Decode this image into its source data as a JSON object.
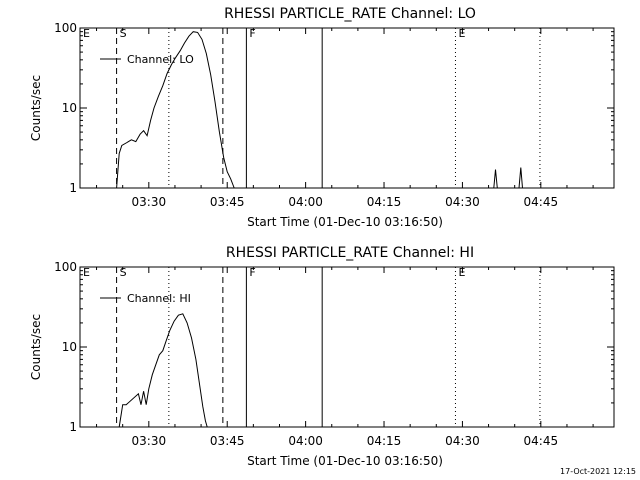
{
  "footer": {
    "timestamp": "17-Oct-2021 12:15"
  },
  "chart_data": [
    {
      "type": "line",
      "title": "RHESSI PARTICLE_RATE Channel: LO",
      "xlabel": "Start Time (01-Dec-10 03:16:50)",
      "ylabel": "Counts/sec",
      "xlim": [
        "03:16:50",
        "04:59:00"
      ],
      "ylim": [
        1,
        100
      ],
      "yscale": "log",
      "xticks": [
        "03:30",
        "03:45",
        "04:00",
        "04:15",
        "04:30",
        "04:45"
      ],
      "yticks": [
        "1",
        "10",
        "100"
      ],
      "legend": {
        "label": "Channel: LO",
        "placement": "top-left"
      },
      "markers": [
        {
          "label": "E",
          "time": "03:16:50",
          "style": "none"
        },
        {
          "label": "S",
          "time": "03:23:50",
          "style": "dashed"
        },
        {
          "label": "",
          "time": "03:33:50",
          "style": "dotted"
        },
        {
          "label": "",
          "time": "03:44:10",
          "style": "dashed"
        },
        {
          "label": "F",
          "time": "03:48:40",
          "style": "solid"
        },
        {
          "label": "",
          "time": "04:03:10",
          "style": "solid"
        },
        {
          "label": "E",
          "time": "04:28:40",
          "style": "dotted"
        },
        {
          "label": "",
          "time": "04:44:50",
          "style": "dotted"
        }
      ],
      "series": [
        {
          "name": "Channel: LO",
          "x": [
            "03:23:50",
            "03:24:20",
            "03:24:50",
            "03:25:50",
            "03:26:40",
            "03:27:30",
            "03:28:20",
            "03:29:00",
            "03:29:40",
            "03:30:20",
            "03:31:00",
            "03:31:50",
            "03:32:40",
            "03:33:30",
            "03:34:20",
            "03:35:10",
            "03:36:00",
            "03:36:50",
            "03:37:40",
            "03:38:30",
            "03:39:20",
            "03:40:10",
            "03:41:00",
            "03:41:50",
            "03:42:40",
            "03:43:30",
            "03:44:20",
            "03:45:00",
            "03:45:40",
            "03:46:20"
          ],
          "y": [
            1,
            2.7,
            3.4,
            3.7,
            4.0,
            3.8,
            4.7,
            5.2,
            4.5,
            7.0,
            10.0,
            14.0,
            19.0,
            27.0,
            35.0,
            43.0,
            52.0,
            65.0,
            79.0,
            90.0,
            88.0,
            72.0,
            48.0,
            26.0,
            12.0,
            5.0,
            2.4,
            1.6,
            1.3,
            1
          ]
        },
        {
          "name": "",
          "x": [
            "04:36:00",
            "04:36:20",
            "04:36:40",
            "04:40:50",
            "04:41:10",
            "04:41:30"
          ],
          "y": [
            1,
            1.7,
            1,
            1,
            1.8,
            1
          ]
        }
      ]
    },
    {
      "type": "line",
      "title": "RHESSI PARTICLE_RATE Channel: HI",
      "xlabel": "Start Time (01-Dec-10 03:16:50)",
      "ylabel": "Counts/sec",
      "xlim": [
        "03:16:50",
        "04:59:00"
      ],
      "ylim": [
        1,
        100
      ],
      "yscale": "log",
      "xticks": [
        "03:30",
        "03:45",
        "04:00",
        "04:15",
        "04:30",
        "04:45"
      ],
      "yticks": [
        "1",
        "10",
        "100"
      ],
      "legend": {
        "label": "Channel: HI",
        "placement": "top-left"
      },
      "markers": [
        {
          "label": "E",
          "time": "03:16:50",
          "style": "none"
        },
        {
          "label": "S",
          "time": "03:23:50",
          "style": "dashed"
        },
        {
          "label": "",
          "time": "03:33:50",
          "style": "dotted"
        },
        {
          "label": "",
          "time": "03:44:10",
          "style": "dashed"
        },
        {
          "label": "F",
          "time": "03:48:40",
          "style": "solid"
        },
        {
          "label": "",
          "time": "04:03:10",
          "style": "solid"
        },
        {
          "label": "E",
          "time": "04:28:40",
          "style": "dotted"
        },
        {
          "label": "",
          "time": "04:44:50",
          "style": "dotted"
        }
      ],
      "series": [
        {
          "name": "Channel: HI",
          "x": [
            "03:24:20",
            "03:25:00",
            "03:25:40",
            "03:28:00",
            "03:28:30",
            "03:29:00",
            "03:29:30",
            "03:30:00",
            "03:30:40",
            "03:31:20",
            "03:32:00",
            "03:32:40",
            "03:33:20",
            "03:34:00",
            "03:34:50",
            "03:35:40",
            "03:36:30",
            "03:37:20",
            "03:38:10",
            "03:39:00",
            "03:39:50",
            "03:40:20",
            "03:40:50",
            "03:41:10"
          ],
          "y": [
            1,
            1.9,
            1.9,
            2.6,
            1.9,
            2.8,
            1.9,
            3.0,
            4.5,
            6.0,
            8.0,
            9.0,
            12.0,
            16.0,
            21.0,
            25.0,
            26.0,
            20.0,
            13.0,
            7.0,
            3.0,
            1.8,
            1.2,
            1
          ]
        }
      ]
    }
  ]
}
